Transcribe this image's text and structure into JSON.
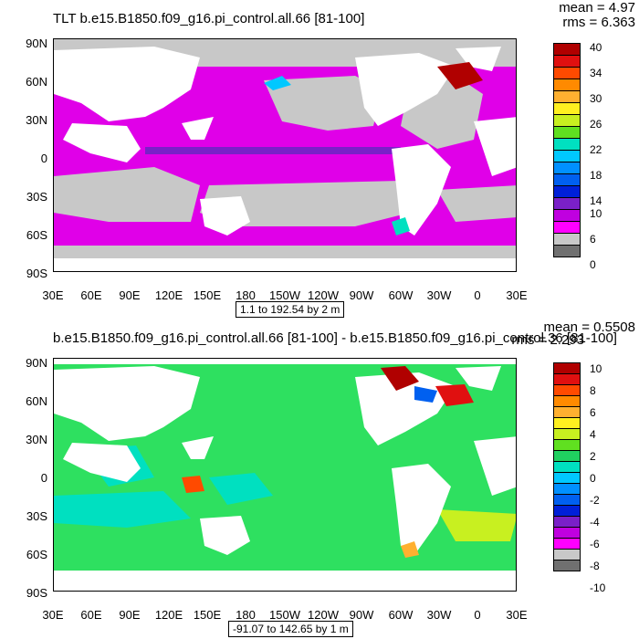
{
  "panels": [
    {
      "title": "TLT b.e15.B1850.f09_g16.pi_control.all.66 [81-100]",
      "mean": "mean = 4.97",
      "rms": "rms = 6.363",
      "range": "1.1 to 192.54 by 2 m",
      "colorbar": {
        "labels": [
          "40",
          "34",
          "30",
          "26",
          "22",
          "18",
          "14",
          "10",
          "6",
          "0"
        ],
        "colors": [
          "#b00000",
          "#e01010",
          "#ff4a00",
          "#ff8a00",
          "#ffb030",
          "#ffd030",
          "#fff020",
          "#c8f020",
          "#60e020",
          "#20d060",
          "#00e0c0",
          "#00c8ff",
          "#0090ff",
          "#0060f0",
          "#0020d8",
          "#7a20c8",
          "#c000e0",
          "#ff00ff",
          "#c8c8c8",
          "#707070"
        ],
        "ocean_color": "#e000e8",
        "land_color": "#ffffff",
        "ice_color": "#c8c8c8"
      }
    },
    {
      "title": "b.e15.B1850.f09_g16.pi_control.all.66 [81-100] - b.e15.B1850.f09_g16.pi_control.36 [81-100]",
      "mean": "mean = 0.5508",
      "rms": "rms = 2.293",
      "range": "-91.07 to 142.65 by 1 m",
      "colorbar": {
        "labels": [
          "10",
          "8",
          "6",
          "4",
          "2",
          "0",
          "-2",
          "-4",
          "-6",
          "-8",
          "-10"
        ],
        "colors": [
          "#b00000",
          "#e01010",
          "#ff4a00",
          "#ff8a00",
          "#ffb030",
          "#ffd030",
          "#fff020",
          "#c8f020",
          "#60e020",
          "#20d060",
          "#00e0c0",
          "#00c8ff",
          "#0090ff",
          "#0060f0",
          "#0020d8",
          "#7a20c8",
          "#c000e0",
          "#ff00ff",
          "#c8c8c8",
          "#707070"
        ],
        "ocean_color": "#2ee060",
        "land_color": "#ffffff"
      }
    }
  ],
  "axes": {
    "lat_labels": [
      "90N",
      "60N",
      "30N",
      "0",
      "30S",
      "60S",
      "90S"
    ],
    "lon_labels": [
      "30E",
      "60E",
      "90E",
      "120E",
      "150E",
      "180",
      "150W",
      "120W",
      "90W",
      "60W",
      "30W",
      "0",
      "30E"
    ]
  }
}
